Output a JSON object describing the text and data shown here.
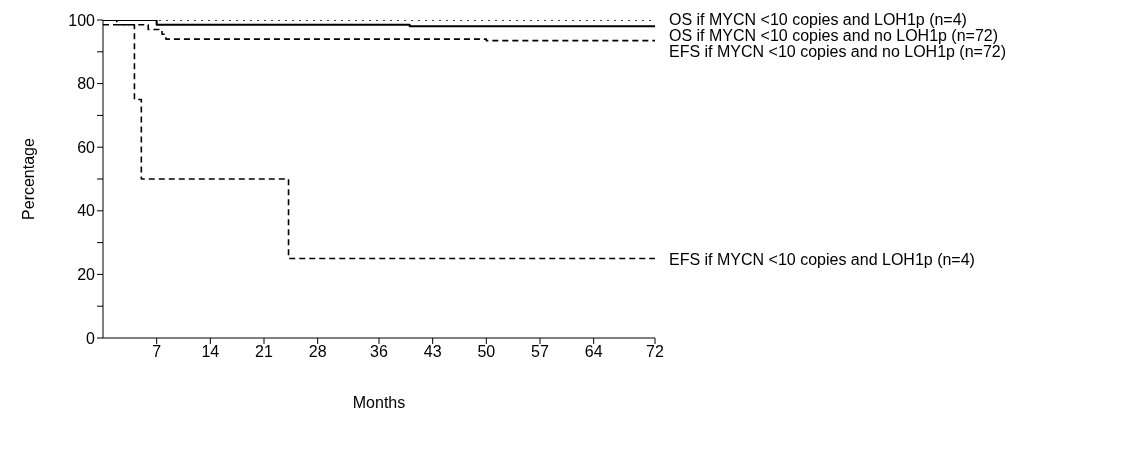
{
  "chart_data": {
    "type": "step",
    "xlabel": "Months",
    "ylabel": "Percentage",
    "xlim": [
      0,
      72
    ],
    "xticks": [
      7,
      14,
      21,
      28,
      36,
      43,
      50,
      57,
      64,
      72
    ],
    "ylim": [
      0,
      100
    ],
    "yticks": [
      0,
      {
        "value": 10,
        "label": null
      },
      20,
      {
        "value": 30,
        "label": null
      },
      40,
      {
        "value": 50,
        "label": null
      },
      60,
      {
        "value": 70,
        "label": null
      },
      80,
      {
        "value": 90,
        "label": null
      },
      100
    ],
    "marker": "none",
    "series": [
      {
        "name": "OS if MYCN <10 copies and LOH1p (n=4)",
        "color": "#000000",
        "line_style": "dotted",
        "x": [
          0,
          72
        ],
        "values": [
          100,
          100
        ]
      },
      {
        "name": "OS if MYCN <10 copies and no LOH1p (n=72)",
        "color": "#000000",
        "line_style": "solid",
        "x": [
          0,
          7,
          40,
          72
        ],
        "values": [
          100,
          98.5,
          98,
          98
        ]
      },
      {
        "name": "EFS if MYCN <10 copies and no LOH1p (n=72)",
        "color": "#000000",
        "line_style": "dashed",
        "x": [
          0,
          1.8,
          5.9,
          7.7,
          8.2,
          50,
          72
        ],
        "values": [
          100,
          98.5,
          97,
          95.5,
          94,
          93.5,
          93.5
        ]
      },
      {
        "name": "EFS if MYCN <10 copies and LOH1p (n=4)",
        "color": "#000000",
        "line_style": "dashed",
        "x": [
          0,
          4.1,
          5,
          24.2,
          72
        ],
        "values": [
          98.5,
          75,
          50,
          25,
          24.5
        ]
      }
    ]
  }
}
